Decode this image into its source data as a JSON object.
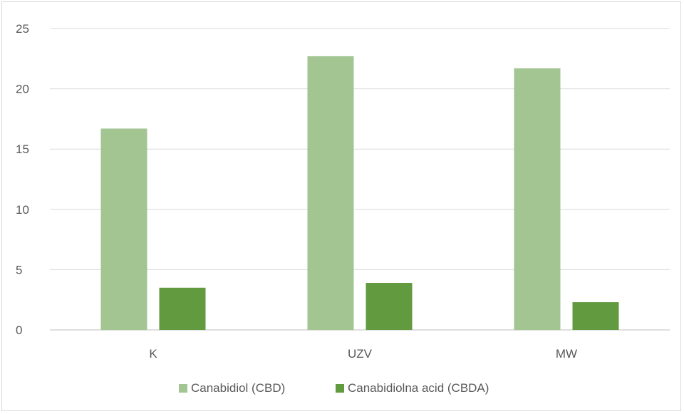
{
  "chart_data": {
    "type": "bar",
    "title": "",
    "xlabel": "",
    "ylabel": "",
    "categories": [
      "K",
      "UZV",
      "MW"
    ],
    "series": [
      {
        "name": "Canabidiol (CBD)",
        "values": [
          16.7,
          22.7,
          21.7
        ],
        "color": "#a2c592"
      },
      {
        "name": "Canabidiolna acid (CBDA)",
        "values": [
          3.5,
          3.9,
          2.3
        ],
        "color": "#629a3f"
      }
    ],
    "ylim": [
      0,
      25
    ],
    "yticks": [
      "0",
      "5",
      "10",
      "15",
      "20",
      "25"
    ],
    "grid": true,
    "legend": "bottom",
    "gridColor": "#d9d9d9",
    "axisColor": "#bfbfbf"
  }
}
